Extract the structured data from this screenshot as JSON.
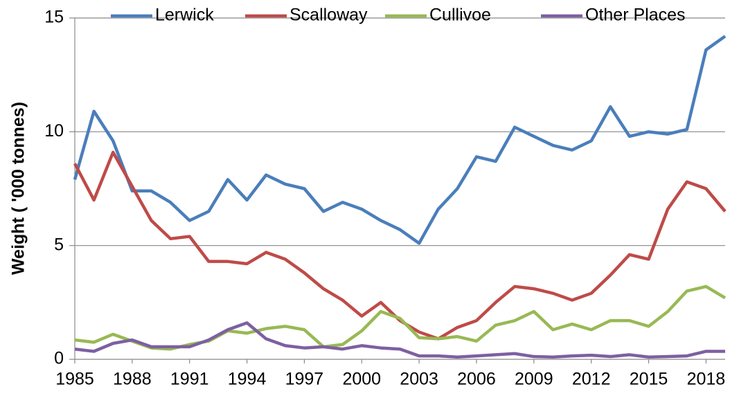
{
  "chart_data": {
    "type": "line",
    "y_label": "Weight ( '000 tonnes)",
    "x": [
      1985,
      1986,
      1987,
      1988,
      1989,
      1990,
      1991,
      1992,
      1993,
      1994,
      1995,
      1996,
      1997,
      1998,
      1999,
      2000,
      2001,
      2002,
      2003,
      2004,
      2005,
      2006,
      2007,
      2008,
      2009,
      2010,
      2011,
      2012,
      2013,
      2014,
      2015,
      2016,
      2017,
      2018,
      2019
    ],
    "xlim": [
      1985,
      2019
    ],
    "xticks": [
      1985,
      1988,
      1991,
      1994,
      1997,
      2000,
      2003,
      2006,
      2009,
      2012,
      2015,
      2018
    ],
    "ylim": [
      0,
      15
    ],
    "yticks": [
      0,
      5,
      10,
      15
    ],
    "grid": true,
    "legend": "top",
    "series": [
      {
        "name": "Lerwick",
        "color": "#4a7ebb",
        "values": [
          7.9,
          10.9,
          9.6,
          7.4,
          7.4,
          6.9,
          6.1,
          6.5,
          7.9,
          7.0,
          8.1,
          7.7,
          7.5,
          6.5,
          6.9,
          6.6,
          6.1,
          5.7,
          5.1,
          6.6,
          7.5,
          8.9,
          8.7,
          10.2,
          9.8,
          9.4,
          9.2,
          9.6,
          11.1,
          9.8,
          10.0,
          9.9,
          10.1,
          13.6,
          14.2
        ]
      },
      {
        "name": "Scalloway",
        "color": "#be4b48",
        "values": [
          8.6,
          7.0,
          9.1,
          7.6,
          6.1,
          5.3,
          5.4,
          4.3,
          4.3,
          4.2,
          4.7,
          4.4,
          3.8,
          3.1,
          2.6,
          1.9,
          2.5,
          1.7,
          1.2,
          0.9,
          1.4,
          1.7,
          2.5,
          3.2,
          3.1,
          2.9,
          2.6,
          2.9,
          3.7,
          4.6,
          4.4,
          6.6,
          7.8,
          7.5,
          6.5
        ]
      },
      {
        "name": "Cullivoe",
        "color": "#98b954",
        "values": [
          0.85,
          0.75,
          1.1,
          0.8,
          0.5,
          0.45,
          0.65,
          0.8,
          1.25,
          1.15,
          1.35,
          1.45,
          1.3,
          0.55,
          0.65,
          1.25,
          2.1,
          1.8,
          0.95,
          0.9,
          1.0,
          0.8,
          1.5,
          1.7,
          2.1,
          1.3,
          1.55,
          1.3,
          1.7,
          1.7,
          1.45,
          2.1,
          3.0,
          3.2,
          2.7
        ]
      },
      {
        "name": "Other Places",
        "color": "#7d60a0",
        "values": [
          0.45,
          0.35,
          0.7,
          0.85,
          0.55,
          0.55,
          0.55,
          0.85,
          1.3,
          1.6,
          0.9,
          0.6,
          0.5,
          0.55,
          0.45,
          0.6,
          0.5,
          0.45,
          0.15,
          0.15,
          0.1,
          0.15,
          0.2,
          0.25,
          0.12,
          0.1,
          0.15,
          0.18,
          0.12,
          0.2,
          0.1,
          0.12,
          0.15,
          0.35,
          0.35
        ]
      }
    ]
  }
}
